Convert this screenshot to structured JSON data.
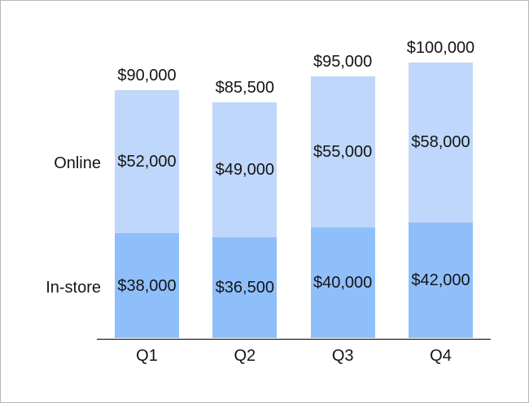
{
  "chart_data": {
    "type": "bar",
    "variant": "stacked",
    "title": "",
    "xlabel": "",
    "ylabel": "",
    "categories": [
      "Q1",
      "Q2",
      "Q3",
      "Q4"
    ],
    "series": [
      {
        "name": "In-store",
        "color": "#8FBFFB",
        "values": [
          38000,
          36500,
          40000,
          42000
        ],
        "labels": [
          "$38,000",
          "$36,500",
          "$40,000",
          "$42,000"
        ]
      },
      {
        "name": "Online",
        "color": "#BED7FB",
        "values": [
          52000,
          49000,
          55000,
          58000
        ],
        "labels": [
          "$52,000",
          "$49,000",
          "$55,000",
          "$58,000"
        ]
      }
    ],
    "totals": {
      "values": [
        90000,
        85500,
        95000,
        100000
      ],
      "labels": [
        "$90,000",
        "$85,500",
        "$95,000",
        "$100,000"
      ]
    },
    "ylim": [
      0,
      100000
    ],
    "grid": false,
    "legend_position": "left-inline",
    "axis_line_color": "#000000",
    "label_text_color": "#141414",
    "background_color": "#FFFFFF"
  }
}
